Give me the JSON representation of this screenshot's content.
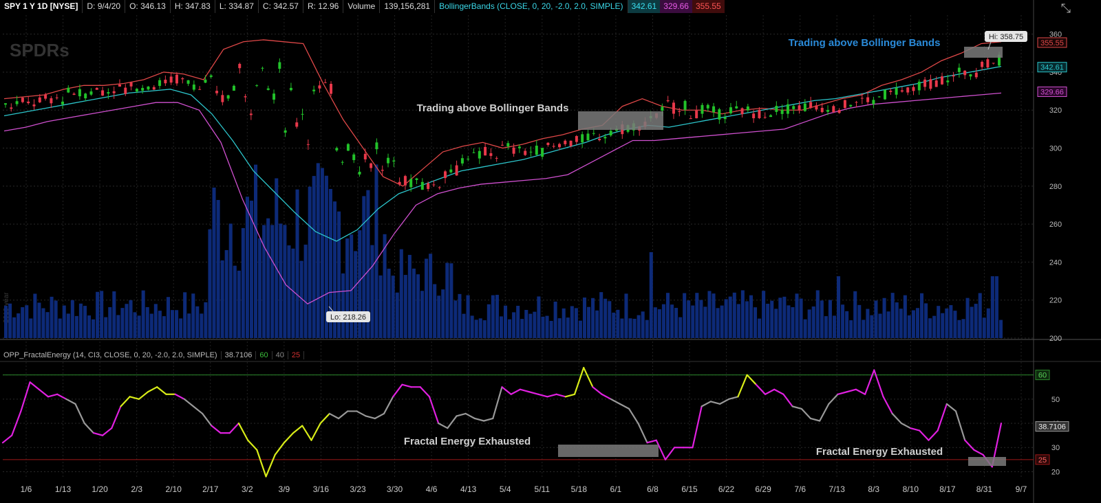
{
  "header": {
    "symbol": "SPY 1 Y 1D [NYSE]",
    "date": "D: 9/4/20",
    "open": "O: 346.13",
    "high": "H: 347.83",
    "low": "L: 334.87",
    "close": "C: 342.57",
    "range": "R: 12.96",
    "volume_label": "Volume",
    "volume_value": "139,156,281",
    "bb_label": "BollingerBands (CLOSE, 0, 20, -2.0, 2.0, SIMPLE)",
    "bb_mid": "342.61",
    "bb_lower": "329.66",
    "bb_upper": "355.55"
  },
  "subheader": {
    "label": "OPP_FractalEnergy (14, CI3, CLOSE, 0, 20, -2.0, 2.0, SIMPLE)",
    "value": "38.7106",
    "upper_level": "60",
    "mid_level": "40",
    "lower_level": "25"
  },
  "watermark": "SPDRs",
  "side_text": "2019 year",
  "colors": {
    "bb_upper": "#e04848",
    "bb_mid": "#2cc6cc",
    "bb_lower": "#d050d0",
    "candle_up": "#22c22a",
    "candle_down": "#e8384a",
    "volume": "#0d2a78",
    "fe_gray": "#999999",
    "fe_magenta": "#e020e0",
    "fe_yellow": "#d8ec18",
    "annotation": "#2a8ad8"
  },
  "chart_data": [
    {
      "type": "line",
      "series": [
        {
          "name": "Upper Band",
          "values": [
            326,
            327,
            328,
            331,
            333,
            333,
            334,
            336,
            340,
            339,
            336,
            352,
            356,
            357,
            356,
            355,
            334,
            315,
            300,
            285,
            280,
            289,
            298,
            301,
            303,
            300,
            302,
            305,
            307,
            310,
            312,
            322,
            326,
            322,
            320,
            320,
            318,
            320,
            321,
            320,
            320,
            323,
            326,
            328,
            333,
            336,
            340,
            346,
            350,
            355,
            356
          ]
        },
        {
          "name": "Middle Band",
          "values": [
            317,
            319,
            321,
            323,
            325,
            327,
            329,
            330,
            331,
            328,
            318,
            304,
            288,
            277,
            266,
            256,
            251,
            257,
            268,
            276,
            280,
            284,
            288,
            290,
            292,
            294,
            297,
            300,
            303,
            307,
            310,
            312,
            311,
            313,
            315,
            317,
            319,
            321,
            323,
            325,
            326,
            328,
            330,
            332,
            334,
            337,
            339,
            341,
            343
          ]
        },
        {
          "name": "Lower Band",
          "values": [
            309,
            311,
            314,
            316,
            318,
            320,
            322,
            324,
            324,
            320,
            303,
            273,
            248,
            228,
            218,
            224,
            225,
            238,
            255,
            270,
            276,
            279,
            281,
            282,
            283,
            284,
            286,
            292,
            298,
            304,
            304,
            305,
            306,
            307,
            308,
            309,
            310,
            314,
            318,
            321,
            323,
            324,
            325,
            326,
            327,
            328,
            329
          ]
        }
      ],
      "ylim": [
        200,
        370
      ],
      "y_ticks": [
        200,
        220,
        240,
        260,
        280,
        300,
        320,
        340,
        360
      ],
      "x_ticks": [
        "1/6",
        "1/13",
        "1/20",
        "2/3",
        "2/10",
        "2/17",
        "3/2",
        "3/9",
        "3/16",
        "3/23",
        "3/30",
        "4/6",
        "4/13",
        "5/4",
        "5/11",
        "5/18",
        "6/1",
        "6/8",
        "6/15",
        "6/22",
        "6/29",
        "7/6",
        "7/13",
        "8/3",
        "8/10",
        "8/17",
        "8/31",
        "9/7"
      ],
      "annotations": {
        "hi": "Hi: 358.75",
        "lo": "Lo: 218.26",
        "trading_above_1": "Trading above Bollinger Bands",
        "trading_above_2": "Trading above Bollinger Bands"
      },
      "price_labels": {
        "upper": "355.55",
        "mid": "342.61",
        "lower": "329.66"
      }
    },
    {
      "type": "line",
      "series": [
        {
          "name": "OPP_FractalEnergy",
          "values": [
            32,
            35,
            45,
            57,
            54,
            51,
            52,
            50,
            48,
            40,
            36,
            35,
            38,
            47,
            51,
            50,
            53,
            55,
            52,
            52,
            50,
            47,
            44,
            39,
            36,
            36,
            40,
            33,
            29,
            18,
            27,
            32,
            36,
            39,
            33,
            40,
            44,
            42,
            45,
            45,
            43,
            42,
            44,
            51,
            56,
            55,
            55,
            51,
            40,
            38,
            43,
            44,
            42,
            41,
            42,
            55,
            52,
            54,
            53,
            52,
            51,
            52,
            51,
            52,
            63,
            55,
            52,
            50,
            48,
            46,
            40,
            32,
            33,
            25,
            30,
            30,
            30,
            47,
            49,
            48,
            50,
            51,
            60,
            56,
            52,
            54,
            52,
            47,
            46,
            42,
            41,
            48,
            52,
            53,
            54,
            52,
            62,
            51,
            44,
            40,
            38,
            37,
            33,
            37,
            48,
            45,
            33,
            29,
            27,
            22,
            40
          ]
        }
      ],
      "ylim": [
        17,
        65
      ],
      "y_ticks": [
        20,
        30,
        40,
        50,
        60
      ],
      "levels": {
        "upper": 60,
        "lower": 25
      },
      "annotations": {
        "exhausted_1": "Fractal Energy Exhausted",
        "exhausted_2": "Fractal Energy Exhausted"
      },
      "value_label": "38.7106",
      "level_labels": {
        "upper": "60",
        "lower": "25"
      }
    }
  ]
}
